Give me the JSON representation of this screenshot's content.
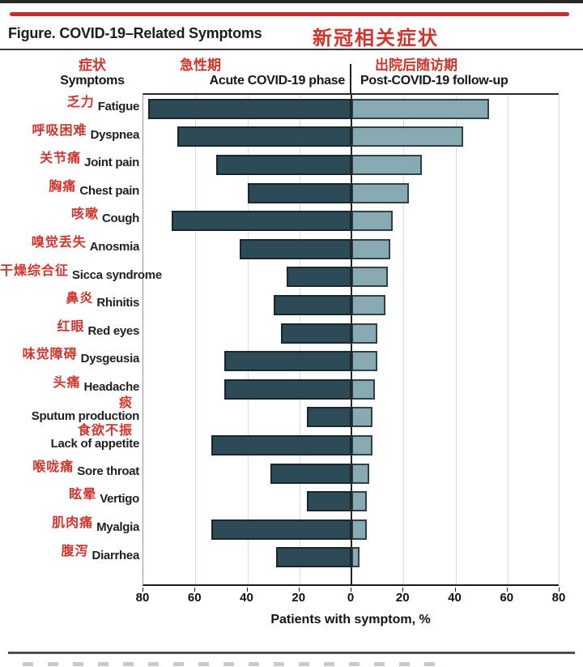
{
  "page": {
    "title_en": "Figure. COVID-19–Related Symptoms",
    "title_zh": "新冠相关症状"
  },
  "columns": {
    "symptoms_zh": "症状",
    "symptoms_en": "Symptoms",
    "acute_zh": "急性期",
    "acute_en": "Acute COVID-19 phase",
    "post_zh": "出院后随访期",
    "post_en": "Post-COVID-19 follow-up"
  },
  "chart_data": {
    "type": "bar",
    "orientation": "horizontal-diverging",
    "title": "Figure. COVID-19–Related Symptoms",
    "title_zh": "新冠相关症状",
    "xlabel": "Patients with symptom, %",
    "x_ticks": [
      80,
      60,
      40,
      20,
      0,
      20,
      40,
      60,
      80
    ],
    "x_range_each_side": [
      0,
      80
    ],
    "grid": true,
    "categories": [
      {
        "zh": "乏力",
        "en": "Fatigue"
      },
      {
        "zh": "呼吸困难",
        "en": "Dyspnea"
      },
      {
        "zh": "关节痛",
        "en": "Joint pain"
      },
      {
        "zh": "胸痛",
        "en": "Chest pain"
      },
      {
        "zh": "咳嗽",
        "en": "Cough"
      },
      {
        "zh": "嗅觉丢失",
        "en": "Anosmia"
      },
      {
        "zh": "干燥综合征",
        "en": "Sicca syndrome"
      },
      {
        "zh": "鼻炎",
        "en": "Rhinitis"
      },
      {
        "zh": "红眼",
        "en": "Red eyes"
      },
      {
        "zh": "味觉障碍",
        "en": "Dysgeusia"
      },
      {
        "zh": "头痛",
        "en": "Headache"
      },
      {
        "zh": "痰",
        "en": "Sputum production"
      },
      {
        "zh": "食欲不振",
        "en": "Lack of appetite"
      },
      {
        "zh": "喉咙痛",
        "en": "Sore throat"
      },
      {
        "zh": "眩晕",
        "en": "Vertigo"
      },
      {
        "zh": "肌肉痛",
        "en": "Myalgia"
      },
      {
        "zh": "腹泻",
        "en": "Diarrhea"
      }
    ],
    "series": [
      {
        "name": "Acute COVID-19 phase",
        "name_zh": "急性期",
        "direction": "left",
        "color": "#2d4b56",
        "values": [
          78,
          67,
          52,
          40,
          69,
          43,
          25,
          30,
          27,
          49,
          49,
          17,
          54,
          31,
          17,
          54,
          29
        ]
      },
      {
        "name": "Post-COVID-19 follow-up",
        "name_zh": "出院后随访期",
        "direction": "right",
        "color": "#87a9b1",
        "values": [
          53,
          43,
          27,
          22,
          16,
          15,
          14,
          13,
          10,
          10,
          9,
          8,
          8,
          7,
          6,
          6,
          3
        ]
      }
    ]
  },
  "colors": {
    "acute_bar": "#2d4b56",
    "followup_bar": "#87a9b1",
    "annotation_red": "#cf352c",
    "top_rule_red": "#c22f31",
    "gridline": "#dcdcdc"
  }
}
